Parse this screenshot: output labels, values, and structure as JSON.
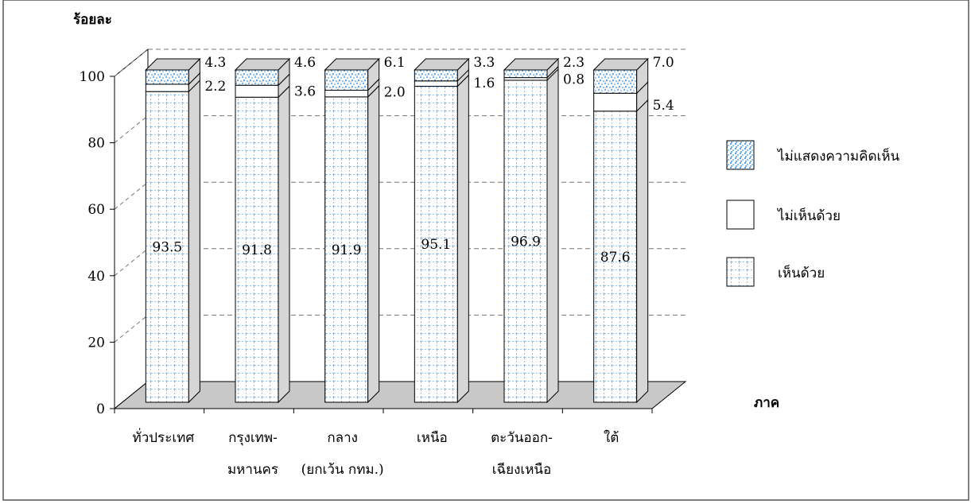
{
  "chart_data": {
    "type": "bar",
    "stacked": true,
    "ylabel": "ร้อยละ",
    "xlabel": "ภาค",
    "ylim": [
      0,
      100
    ],
    "yticks": [
      0,
      20,
      40,
      60,
      80,
      100
    ],
    "grid": true,
    "legend_position": "right",
    "categories": [
      [
        "ทั่วประเทศ"
      ],
      [
        "กรุงเทพ-",
        "มหานคร"
      ],
      [
        "กลาง",
        "(ยกเว้น กทม.)"
      ],
      [
        "เหนือ"
      ],
      [
        "ตะวันออก-",
        "เฉียงเหนือ"
      ],
      [
        "ใต้"
      ]
    ],
    "series": [
      {
        "name": "เห็นด้วย",
        "values": [
          93.5,
          91.8,
          91.9,
          95.1,
          96.9,
          87.6
        ],
        "labels": [
          "93.5",
          "91.8",
          "91.9",
          "95.1",
          "96.9",
          "87.6"
        ],
        "color": "#6aaef0"
      },
      {
        "name": "ไม่เห็นด้วย",
        "values": [
          2.2,
          3.6,
          2.0,
          1.6,
          0.8,
          5.4
        ],
        "labels": [
          "2.2",
          "3.6",
          "2.0",
          "1.6",
          "0.8",
          "5.4"
        ],
        "color": "#ffffff"
      },
      {
        "name": "ไม่แสดงความคิดเห็น",
        "values": [
          4.3,
          4.6,
          6.1,
          3.3,
          2.3,
          7.0
        ],
        "labels": [
          "4.3",
          "4.6",
          "6.1",
          "3.3",
          "2.3",
          "7.0"
        ],
        "color": "#5aa8f0"
      }
    ]
  }
}
